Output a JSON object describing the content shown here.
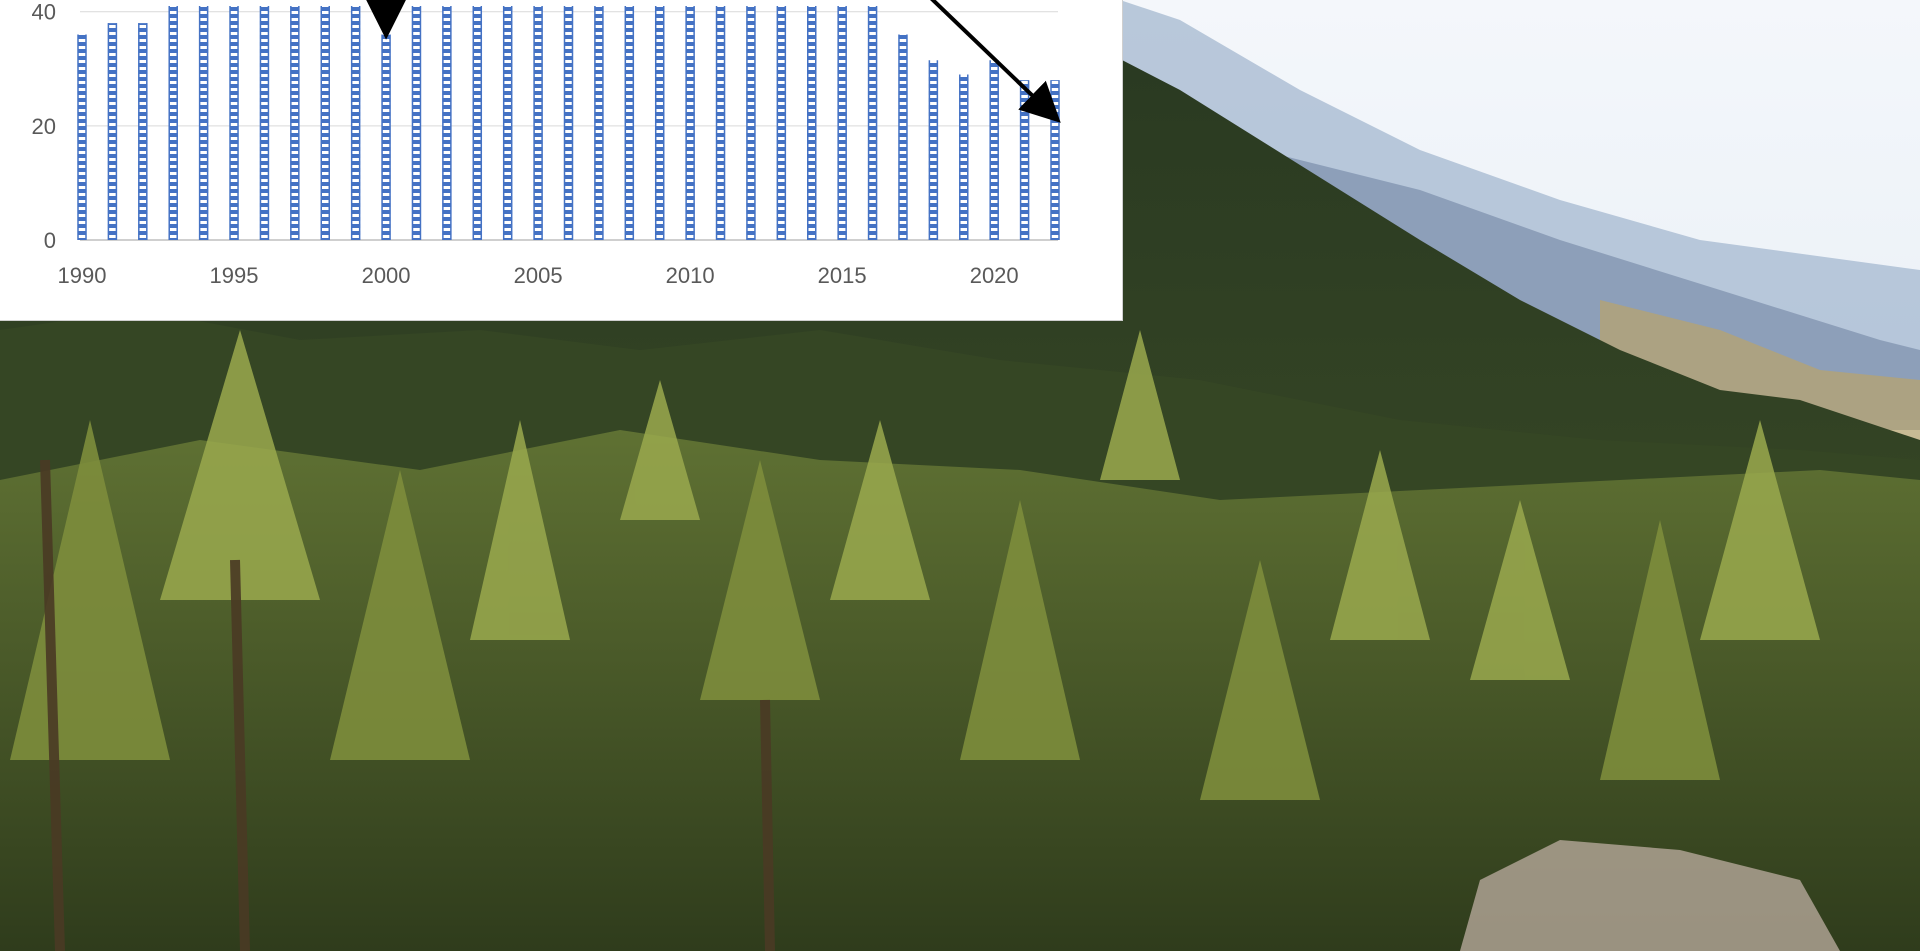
{
  "background": {
    "description_icon": "larch-forest-mountain-photo",
    "colors": {
      "sky": "#eef4fa",
      "far_ridge": "#9fb3cc",
      "mid_ridge": "#7f93ad",
      "dark_forest": "#2c3b22",
      "mid_forest": "#56692e",
      "larch_light": "#a7b45a",
      "trunk": "#4a3a24"
    }
  },
  "chart_data": {
    "type": "bar",
    "bar_fill": "#4472c4",
    "bar_pattern": "horizontal-stripes",
    "x": [
      1990,
      1991,
      1992,
      1993,
      1994,
      1995,
      1996,
      1997,
      1998,
      1999,
      2000,
      2001,
      2002,
      2003,
      2004,
      2005,
      2006,
      2007,
      2008,
      2009,
      2010,
      2011,
      2012,
      2013,
      2014,
      2015,
      2016,
      2017,
      2018,
      2019,
      2020,
      2021,
      2022
    ],
    "values": [
      36,
      38,
      38,
      41,
      41,
      41,
      41,
      41,
      41,
      41,
      36,
      41,
      41,
      41,
      41,
      41,
      41,
      41,
      41,
      41,
      41,
      41,
      41,
      41,
      41,
      41,
      41,
      36,
      31.5,
      29,
      31.5,
      28,
      28
    ],
    "x_tick_labels": [
      "1990",
      "1995",
      "2000",
      "2005",
      "2010",
      "2015",
      "2020"
    ],
    "y_tick_labels": [
      "0",
      "20",
      "40"
    ],
    "ylim": [
      0,
      41
    ],
    "grid": true,
    "annotations": [
      {
        "type": "arrow",
        "color": "#000000",
        "from": [
          2000,
          41
        ],
        "to": [
          2000,
          36.5
        ]
      },
      {
        "type": "arrow",
        "color": "#000000",
        "from": [
          2017.3,
          41
        ],
        "to": [
          2022,
          21.5
        ]
      }
    ]
  }
}
